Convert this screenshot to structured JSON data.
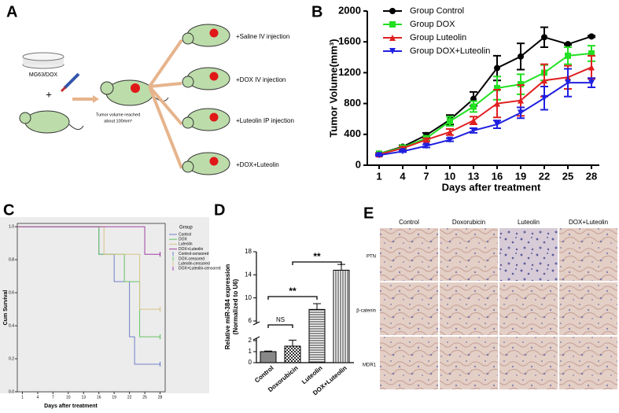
{
  "diagram": {
    "panel": "A",
    "source_label": "MG63/DOX",
    "plus": "+",
    "tumor_note": [
      "Tumor volume reached",
      "about 100mm³"
    ],
    "groups": [
      "+Saline IV injection",
      "+DOX IV injection",
      "+Luteolin IP injection",
      "+DOX+Luteolin"
    ]
  },
  "chart_data": [
    {
      "type": "line",
      "panel": "B",
      "x_label": "Days after treatment",
      "y_label": "Tumor Volume(mm³)",
      "x": [
        1,
        4,
        7,
        10,
        13,
        16,
        19,
        22,
        25,
        28
      ],
      "xlim": [
        -0.5,
        29
      ],
      "xticks": [
        1,
        4,
        7,
        10,
        13,
        16,
        19,
        22,
        25,
        28
      ],
      "ylim": [
        0,
        2000
      ],
      "yticks": [
        0,
        400,
        800,
        1200,
        1600,
        2000
      ],
      "legend": "upper left",
      "series": [
        {
          "name": "Group Control",
          "color": "#000000",
          "marker": "circle",
          "values": [
            150,
            240,
            390,
            590,
            860,
            1260,
            1410,
            1660,
            1570,
            1670
          ],
          "errors": [
            10,
            20,
            30,
            60,
            90,
            160,
            170,
            130,
            10,
            10
          ]
        },
        {
          "name": "Group DOX",
          "color": "#22e022",
          "marker": "square",
          "values": [
            150,
            230,
            350,
            570,
            760,
            1000,
            1050,
            1200,
            1420,
            1450
          ],
          "errors": [
            10,
            20,
            30,
            60,
            70,
            150,
            130,
            100,
            110,
            100
          ]
        },
        {
          "name": "Group Luteolin",
          "color": "#e02020",
          "marker": "triangle",
          "values": [
            140,
            220,
            330,
            430,
            580,
            800,
            840,
            1100,
            1140,
            1270
          ],
          "errors": [
            10,
            20,
            20,
            40,
            50,
            180,
            200,
            210,
            150,
            150
          ]
        },
        {
          "name": "Group DOX+Luteolin",
          "color": "#2020e0",
          "marker": "triangle-down",
          "values": [
            130,
            180,
            250,
            330,
            450,
            530,
            680,
            870,
            1070,
            1070
          ],
          "errors": [
            10,
            10,
            20,
            20,
            30,
            50,
            70,
            150,
            180,
            60
          ]
        }
      ]
    },
    {
      "type": "survival",
      "panel": "C",
      "x_label": "Days after treatment",
      "y_label": "Cum Survival",
      "legend_title": "Group",
      "xlim": [
        0,
        29
      ],
      "xticks": [
        1,
        4,
        7,
        10,
        13,
        16,
        19,
        22,
        25,
        28
      ],
      "ylim": [
        0,
        1.02
      ],
      "yticks": [
        {
          "value": 0,
          "label": "0.0"
        },
        {
          "value": 0.2,
          "label": "0.2"
        },
        {
          "value": 0.4,
          "label": "0.4"
        },
        {
          "value": 0.6,
          "label": "0.6"
        },
        {
          "value": 0.8,
          "label": "0.8"
        },
        {
          "value": 1,
          "label": "1.0"
        }
      ],
      "series": [
        {
          "name": "Control",
          "color": "#6f7fc8",
          "marker": "step",
          "x": [
            0,
            16,
            19,
            22,
            23,
            28
          ],
          "values": [
            1,
            0.833,
            0.667,
            0.333,
            0.167,
            0.167
          ]
        },
        {
          "name": "DOX",
          "color": "#66c266",
          "marker": "step",
          "x": [
            0,
            16,
            21,
            24,
            28
          ],
          "values": [
            1,
            0.833,
            0.667,
            0.333,
            0.333
          ]
        },
        {
          "name": "Luteolin",
          "color": "#d8c488",
          "marker": "step",
          "x": [
            0,
            17,
            24,
            28
          ],
          "values": [
            1,
            0.833,
            0.5,
            0.5
          ]
        },
        {
          "name": "DOX+Luteolin",
          "color": "#a040a0",
          "marker": "step",
          "x": [
            0,
            25,
            28
          ],
          "values": [
            1,
            0.833,
            0.833
          ]
        },
        {
          "name": "Control-censored",
          "color": "#6f7fc8",
          "marker": "censor",
          "x": [
            28
          ],
          "values": [
            0.167
          ]
        },
        {
          "name": "DOX-censored",
          "color": "#66c266",
          "marker": "censor",
          "x": [
            28
          ],
          "values": [
            0.333
          ]
        },
        {
          "name": "Luteolin-censored",
          "color": "#d8c488",
          "marker": "censor",
          "x": [
            28
          ],
          "values": [
            0.5
          ]
        },
        {
          "name": "DOX+Luteolin-censored",
          "color": "#a040a0",
          "marker": "censor",
          "x": [
            28
          ],
          "values": [
            0.833
          ]
        }
      ]
    },
    {
      "type": "bar",
      "panel": "D",
      "y_label": [
        "Relative miR-384 expression",
        "(Normalized to U6)"
      ],
      "categories": [
        "Control",
        "Doxorubicin",
        "Luteolin",
        "DOX+Luteolin"
      ],
      "values": [
        1,
        1.5,
        8,
        14.8
      ],
      "errors": [
        0.05,
        0.6,
        1,
        1
      ],
      "ylim": [
        0,
        18
      ],
      "axis_break": [
        2,
        6
      ],
      "yticks": [
        0,
        1,
        2,
        6,
        10,
        14,
        18
      ],
      "annotations": [
        "NS",
        "**",
        "**"
      ]
    }
  ],
  "ihc": {
    "panel": "E",
    "columns": [
      "Control",
      "Doxorubicin",
      "Luteolin",
      "DOX+Luteolin"
    ],
    "rows": [
      "PTN",
      "β-catenin",
      "MDR1"
    ]
  }
}
